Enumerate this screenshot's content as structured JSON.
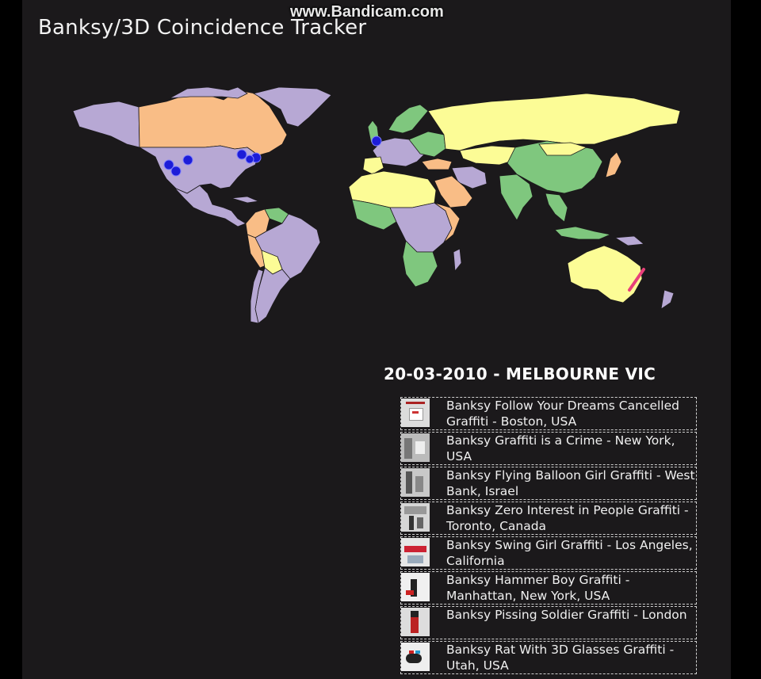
{
  "watermark": "www.Bandicam.com",
  "title": "Banksy/3D Coincidence Tracker",
  "event": {
    "heading": "20-03-2010 - MELBOURNE VIC"
  },
  "colors": {
    "purple": "#b7a8d4",
    "orange": "#f9bd86",
    "green": "#7fc77e",
    "yellow": "#fcfc96",
    "marker": "#1d1dd8",
    "highlight": "#e8407a",
    "background": "#1b191b"
  },
  "markers": [
    {
      "place": "Boston, USA"
    },
    {
      "place": "New York, USA"
    },
    {
      "place": "Toronto, Canada"
    },
    {
      "place": "Los Angeles, California"
    },
    {
      "place": "Utah, USA"
    },
    {
      "place": "London"
    }
  ],
  "results": [
    {
      "text": "Banksy Follow Your Dreams Cancelled Graffiti - Boston, USA",
      "thumb_icon": "follow-your-dreams-thumbnail-icon"
    },
    {
      "text": "Banksy Graffiti is a Crime - New York, USA",
      "thumb_icon": "graffiti-is-a-crime-thumbnail-icon"
    },
    {
      "text": "Banksy Flying Balloon Girl Graffiti - West Bank, Israel",
      "thumb_icon": "balloon-girl-thumbnail-icon"
    },
    {
      "text": "Banksy Zero Interest in People Graffiti - Toronto, Canada",
      "thumb_icon": "zero-interest-thumbnail-icon"
    },
    {
      "text": "Banksy Swing Girl Graffiti - Los Angeles, California",
      "thumb_icon": "swing-girl-thumbnail-icon"
    },
    {
      "text": "Banksy Hammer Boy Graffiti - Manhattan, New York, USA",
      "thumb_icon": "hammer-boy-thumbnail-icon"
    },
    {
      "text": "Banksy Pissing Soldier Graffiti - London",
      "thumb_icon": "pissing-soldier-thumbnail-icon"
    },
    {
      "text": "Banksy Rat With 3D Glasses Graffiti - Utah, USA",
      "thumb_icon": "rat-3d-glasses-thumbnail-icon"
    }
  ]
}
